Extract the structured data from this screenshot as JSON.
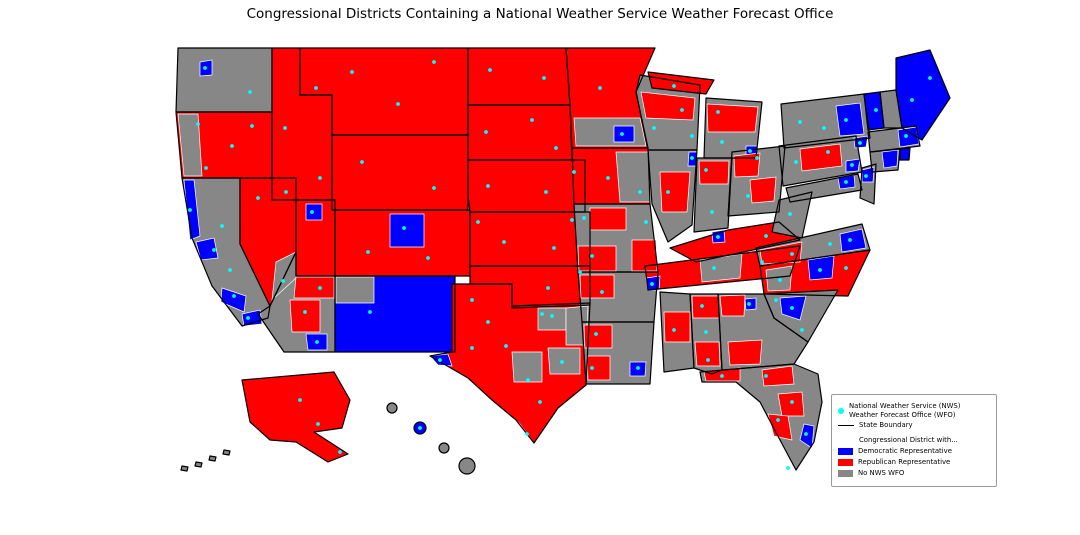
{
  "title": "Congressional Districts Containing a National Weather Service Weather Forecast Office",
  "colors": {
    "democratic": "#0000ff",
    "republican": "#ff0000",
    "no_wfo": "#878787",
    "wfo_dot": "#00ffff",
    "state_boundary": "#000000",
    "district_boundary": "#ffffff"
  },
  "legend": {
    "wfo_label_line1": "National Weather Service (NWS)",
    "wfo_label_line2": "Weather Forecast Office (WFO)",
    "state_boundary_label": "State Boundary",
    "district_header": "Congressional District with...",
    "items": [
      {
        "key": "democratic",
        "label": "Democratic Representative"
      },
      {
        "key": "republican",
        "label": "Republican Representative"
      },
      {
        "key": "no_wfo",
        "label": "No NWS WFO"
      }
    ]
  },
  "map": {
    "regions": [
      {
        "id": "washington",
        "category": "no_wfo"
      },
      {
        "id": "oregon",
        "category": "republican"
      },
      {
        "id": "california",
        "category": "no_wfo"
      },
      {
        "id": "nevada",
        "category": "republican"
      },
      {
        "id": "idaho",
        "category": "republican"
      },
      {
        "id": "montana",
        "category": "republican"
      },
      {
        "id": "wyoming",
        "category": "republican"
      },
      {
        "id": "utah",
        "category": "republican"
      },
      {
        "id": "colorado",
        "category": "republican"
      },
      {
        "id": "arizona",
        "category": "no_wfo"
      },
      {
        "id": "new-mexico",
        "category": "democratic"
      },
      {
        "id": "north-dakota",
        "category": "republican"
      },
      {
        "id": "south-dakota",
        "category": "republican"
      },
      {
        "id": "nebraska",
        "category": "republican"
      },
      {
        "id": "kansas",
        "category": "republican"
      },
      {
        "id": "oklahoma",
        "category": "republican"
      },
      {
        "id": "texas",
        "category": "republican"
      },
      {
        "id": "minnesota",
        "category": "republican"
      },
      {
        "id": "iowa",
        "category": "republican"
      },
      {
        "id": "missouri",
        "category": "no_wfo"
      },
      {
        "id": "arkansas",
        "category": "no_wfo"
      },
      {
        "id": "louisiana",
        "category": "no_wfo"
      },
      {
        "id": "wisconsin",
        "category": "no_wfo"
      },
      {
        "id": "michigan-upper",
        "category": "republican"
      },
      {
        "id": "michigan",
        "category": "no_wfo"
      },
      {
        "id": "illinois",
        "category": "no_wfo"
      },
      {
        "id": "indiana",
        "category": "no_wfo"
      },
      {
        "id": "ohio",
        "category": "no_wfo"
      },
      {
        "id": "kentucky",
        "category": "republican"
      },
      {
        "id": "tennessee",
        "category": "republican"
      },
      {
        "id": "west-virginia",
        "category": "no_wfo"
      },
      {
        "id": "virginia",
        "category": "no_wfo"
      },
      {
        "id": "north-carolina",
        "category": "republican"
      },
      {
        "id": "south-carolina",
        "category": "no_wfo"
      },
      {
        "id": "georgia",
        "category": "no_wfo"
      },
      {
        "id": "alabama",
        "category": "no_wfo"
      },
      {
        "id": "mississippi",
        "category": "no_wfo"
      },
      {
        "id": "florida",
        "category": "no_wfo"
      },
      {
        "id": "pennsylvania",
        "category": "no_wfo"
      },
      {
        "id": "new-york",
        "category": "no_wfo"
      },
      {
        "id": "new-jersey",
        "category": "no_wfo"
      },
      {
        "id": "maryland",
        "category": "no_wfo"
      },
      {
        "id": "vermont",
        "category": "democratic"
      },
      {
        "id": "new-hampshire",
        "category": "no_wfo"
      },
      {
        "id": "maine",
        "category": "democratic"
      },
      {
        "id": "massachusetts",
        "category": "no_wfo"
      },
      {
        "id": "connecticut",
        "category": "no_wfo"
      },
      {
        "id": "rhode-island",
        "category": "democratic"
      },
      {
        "id": "alaska",
        "category": "republican"
      },
      {
        "id": "aleutian-islands",
        "category": "no_wfo"
      },
      {
        "id": "hawaii-kauai",
        "category": "no_wfo"
      },
      {
        "id": "hawaii-oahu",
        "category": "democratic"
      },
      {
        "id": "hawaii-maui",
        "category": "no_wfo"
      },
      {
        "id": "hawaii-big-island",
        "category": "no_wfo"
      },
      {
        "id": "washington-seattle",
        "category": "democratic"
      },
      {
        "id": "oregon-coast",
        "category": "no_wfo"
      },
      {
        "id": "california-north-coast",
        "category": "democratic"
      },
      {
        "id": "california-bay-area",
        "category": "democratic"
      },
      {
        "id": "california-los-angeles",
        "category": "democratic"
      },
      {
        "id": "california-san-diego",
        "category": "democratic"
      },
      {
        "id": "nevada-south",
        "category": "no_wfo"
      },
      {
        "id": "utah-salt-lake",
        "category": "democratic"
      },
      {
        "id": "colorado-denver",
        "category": "democratic"
      },
      {
        "id": "arizona-north",
        "category": "republican"
      },
      {
        "id": "arizona-central",
        "category": "republican"
      },
      {
        "id": "arizona-tucson",
        "category": "democratic"
      },
      {
        "id": "new-mexico-northwest",
        "category": "no_wfo"
      },
      {
        "id": "texas-dallas",
        "category": "no_wfo"
      },
      {
        "id": "texas-east",
        "category": "no_wfo"
      },
      {
        "id": "texas-houston",
        "category": "no_wfo"
      },
      {
        "id": "texas-central",
        "category": "no_wfo"
      },
      {
        "id": "texas-south-tip",
        "category": "democratic"
      },
      {
        "id": "texas-el-paso",
        "category": "democratic"
      },
      {
        "id": "minnesota-south",
        "category": "no_wfo"
      },
      {
        "id": "minnesota-twin-cities",
        "category": "democratic"
      },
      {
        "id": "wisconsin-north",
        "category": "republican"
      },
      {
        "id": "iowa-east",
        "category": "no_wfo"
      },
      {
        "id": "missouri-north",
        "category": "republican"
      },
      {
        "id": "missouri-southwest",
        "category": "republican"
      },
      {
        "id": "missouri-southeast",
        "category": "republican"
      },
      {
        "id": "arkansas-northwest",
        "category": "republican"
      },
      {
        "id": "louisiana-north",
        "category": "republican"
      },
      {
        "id": "louisiana-southwest",
        "category": "republican"
      },
      {
        "id": "louisiana-new-orleans",
        "category": "democratic"
      },
      {
        "id": "illinois-central",
        "category": "republican"
      },
      {
        "id": "illinois-chicago",
        "category": "democratic"
      },
      {
        "id": "michigan-north",
        "category": "republican"
      },
      {
        "id": "michigan-detroit",
        "category": "democratic"
      },
      {
        "id": "indiana-north",
        "category": "republican"
      },
      {
        "id": "ohio-northwest",
        "category": "republican"
      },
      {
        "id": "ohio-central",
        "category": "republican"
      },
      {
        "id": "kentucky-louisville",
        "category": "democratic"
      },
      {
        "id": "tennessee-middle",
        "category": "no_wfo"
      },
      {
        "id": "tennessee-memphis",
        "category": "democratic"
      },
      {
        "id": "mississippi-central",
        "category": "republican"
      },
      {
        "id": "alabama-north",
        "category": "republican"
      },
      {
        "id": "alabama-south",
        "category": "republican"
      },
      {
        "id": "georgia-northwest",
        "category": "republican"
      },
      {
        "id": "georgia-atlanta",
        "category": "democratic"
      },
      {
        "id": "georgia-south",
        "category": "republican"
      },
      {
        "id": "florida-panhandle",
        "category": "republican"
      },
      {
        "id": "florida-northeast",
        "category": "republican"
      },
      {
        "id": "florida-central",
        "category": "republican"
      },
      {
        "id": "florida-southwest",
        "category": "republican"
      },
      {
        "id": "florida-miami",
        "category": "democratic"
      },
      {
        "id": "south-carolina-midlands",
        "category": "democratic"
      },
      {
        "id": "north-carolina-west",
        "category": "no_wfo"
      },
      {
        "id": "north-carolina-east",
        "category": "democratic"
      },
      {
        "id": "virginia-west",
        "category": "republican"
      },
      {
        "id": "virginia-east",
        "category": "democratic"
      },
      {
        "id": "pennsylvania-central",
        "category": "republican"
      },
      {
        "id": "pennsylvania-southeast",
        "category": "democratic"
      },
      {
        "id": "new-york-east",
        "category": "democratic"
      },
      {
        "id": "new-york-nyc",
        "category": "democratic"
      },
      {
        "id": "new-jersey-north",
        "category": "democratic"
      },
      {
        "id": "maryland-central",
        "category": "democratic"
      },
      {
        "id": "massachusetts-east",
        "category": "democratic"
      },
      {
        "id": "connecticut-central",
        "category": "democratic"
      }
    ]
  }
}
